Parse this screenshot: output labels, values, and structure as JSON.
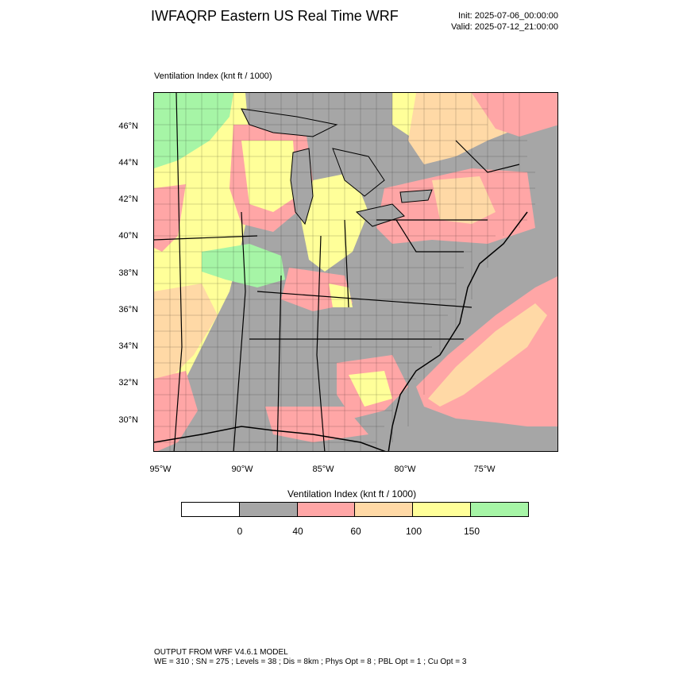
{
  "header": {
    "title": "IWFAQRP Eastern US Real Time WRF",
    "init": "Init: 2025-07-06_00:00:00",
    "valid": "Valid: 2025-07-12_21:00:00"
  },
  "map": {
    "subtitle": "Ventilation Index   (knt ft / 1000)",
    "lat_labels": [
      "46°N",
      "44°N",
      "42°N",
      "40°N",
      "38°N",
      "36°N",
      "34°N",
      "32°N",
      "30°N"
    ],
    "lon_labels": [
      "95°W",
      "90°W",
      "85°W",
      "80°W",
      "75°W"
    ],
    "colors": {
      "land_gray": "#a6a6a6",
      "water_gray": "#a6a6a6",
      "pink": "#ffa6a6",
      "orange": "#ffd9a6",
      "yellow": "#ffff99",
      "green": "#a6f5a6"
    }
  },
  "colorbar": {
    "title": "Ventilation Index  (knt ft / 1000)",
    "colors": [
      "#ffffff",
      "#a6a6a6",
      "#ffa6a6",
      "#ffd9a6",
      "#ffff99",
      "#a6f5a6"
    ],
    "labels": [
      "0",
      "40",
      "60",
      "100",
      "150"
    ]
  },
  "footer": {
    "line1": "OUTPUT FROM WRF V4.6.1 MODEL",
    "line2": "WE = 310 ; SN = 275 ; Levels = 38 ; Dis = 8km ; Phys Opt = 8 ; PBL Opt = 1 ; Cu Opt = 3"
  }
}
